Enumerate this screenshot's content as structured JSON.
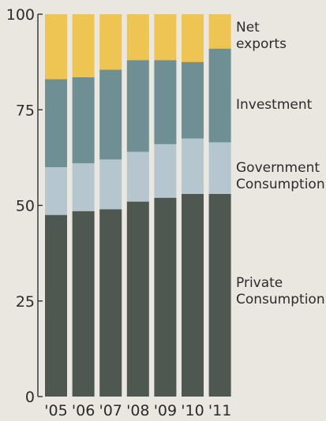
{
  "chart_data": {
    "type": "bar",
    "stacked": true,
    "categories": [
      "'05",
      "'06",
      "'07",
      "'08",
      "'09",
      "'10",
      "'11"
    ],
    "ylim": [
      0,
      100
    ],
    "yticks": [
      0,
      25,
      50,
      75,
      100
    ],
    "grid": false,
    "legend_position": "right",
    "series": [
      {
        "name": "Private Consumption",
        "color": "#4f5850",
        "values": [
          47.5,
          48.5,
          49,
          51,
          52,
          53,
          53
        ]
      },
      {
        "name": "Government Consumption",
        "color": "#b5c6cf",
        "values": [
          12.5,
          12.5,
          13,
          13,
          14,
          14.5,
          13.5
        ]
      },
      {
        "name": "Investment",
        "color": "#6e8f93",
        "values": [
          23,
          22.5,
          23.5,
          24,
          22,
          20,
          24.5
        ]
      },
      {
        "name": "Net exports",
        "color": "#eec453",
        "values": [
          17,
          16.5,
          14.5,
          12,
          12,
          12.5,
          9
        ]
      }
    ],
    "legend_labels": [
      {
        "lines": [
          "Net",
          "exports"
        ]
      },
      {
        "lines": [
          "Investment"
        ]
      },
      {
        "lines": [
          "Government",
          "Consumption"
        ]
      },
      {
        "lines": [
          "Private",
          "Consumption"
        ]
      }
    ]
  }
}
